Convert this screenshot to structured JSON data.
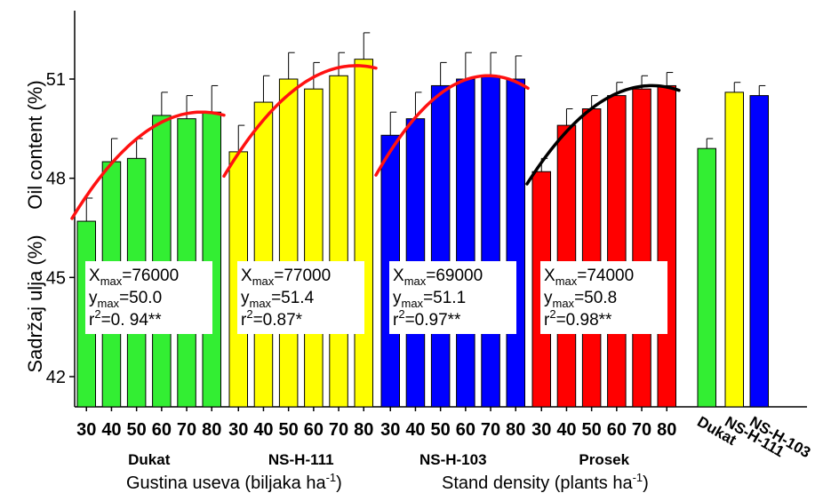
{
  "chart_data": {
    "type": "bar",
    "ylabel_primary": "Oil content (%)",
    "ylabel_secondary": "Sadržaj ulja (%)",
    "xlabel_secondary": "Gustina useva (biljaka ha",
    "xlabel_primary": "Stand density (plants ha",
    "xlabel_unit_sup": "-1",
    "xlabel_close": ")",
    "ylim": [
      41,
      53
    ],
    "yticks": [
      "42",
      "45",
      "48",
      "51"
    ],
    "ytick_values": [
      42,
      45,
      48,
      51
    ],
    "density_ticks": [
      "30",
      "40",
      "50",
      "60",
      "70",
      "80"
    ],
    "colors": {
      "Dukat": "#33ee33",
      "NS-H-111": "#ffff00",
      "NS-H-103": "#0000ff",
      "Prosek": "#ff0000",
      "fit": "#ff1111",
      "fit_prosek": "#000000"
    },
    "groups": [
      {
        "name": "Dukat",
        "color": "#33ee33",
        "values": [
          46.7,
          48.5,
          48.6,
          49.9,
          49.8,
          50.0
        ],
        "errors": [
          0.7,
          0.7,
          0.6,
          0.7,
          0.7,
          0.8
        ],
        "fit": {
          "a": -0.0012,
          "b": 0.1824,
          "c": 43.07,
          "line_color": "#ff1111"
        },
        "annotation": {
          "xmax_label": "X",
          "xmax_sub": "max",
          "xmax_value": "=76000",
          "ymax_label": "y",
          "ymax_sub": "max",
          "ymax_value": "=50.0",
          "r2_label": "r",
          "r2_sup": "2",
          "r2_value": "=0. 94**"
        }
      },
      {
        "name": "NS-H-111",
        "color": "#ffff00",
        "values": [
          48.8,
          50.3,
          51.0,
          50.7,
          51.1,
          51.6
        ],
        "errors": [
          0.8,
          0.8,
          0.8,
          0.8,
          0.7,
          0.8
        ],
        "fit": {
          "a": -0.0012,
          "b": 0.1848,
          "c": 44.29,
          "line_color": "#ff1111"
        },
        "annotation": {
          "xmax_label": "X",
          "xmax_sub": "max",
          "xmax_value": "=77000",
          "ymax_label": "y",
          "ymax_sub": "max",
          "ymax_value": "=51.4",
          "r2_label": "r",
          "r2_sup": "2",
          "r2_value": "=0.87*"
        }
      },
      {
        "name": "NS-H-103",
        "color": "#0000ff",
        "values": [
          49.3,
          49.8,
          50.8,
          51.0,
          51.1,
          51.0
        ],
        "errors": [
          0.7,
          0.8,
          0.7,
          0.8,
          0.7,
          0.7
        ],
        "fit": {
          "a": -0.0015,
          "b": 0.207,
          "c": 43.96,
          "line_color": "#ff1111"
        },
        "annotation": {
          "xmax_label": "X",
          "xmax_sub": "max",
          "xmax_value": "=69000",
          "ymax_label": "y",
          "ymax_sub": "max",
          "ymax_value": "=51.1",
          "r2_label": "r",
          "r2_sup": "2",
          "r2_value": "=0.97**"
        }
      },
      {
        "name": "Prosek",
        "color": "#ff0000",
        "values": [
          48.2,
          49.6,
          50.1,
          50.5,
          50.7,
          50.8
        ],
        "errors": [
          0.4,
          0.5,
          0.4,
          0.4,
          0.4,
          0.4
        ],
        "fit": {
          "a": -0.0012,
          "b": 0.1776,
          "c": 44.23,
          "line_color": "#000000"
        },
        "annotation": {
          "xmax_label": "X",
          "xmax_sub": "max",
          "xmax_value": "=74000",
          "ymax_label": "y",
          "ymax_sub": "max",
          "ymax_value": "=50.8",
          "r2_label": "r",
          "r2_sup": "2",
          "r2_value": "=0.98**"
        }
      }
    ],
    "averages": {
      "categories": [
        "Dukat",
        "NS-H-111",
        "NS-H-103"
      ],
      "colors": [
        "#33ee33",
        "#ffff00",
        "#0000ff"
      ],
      "values": [
        48.9,
        50.6,
        50.5
      ],
      "errors": [
        0.3,
        0.3,
        0.3
      ]
    }
  }
}
